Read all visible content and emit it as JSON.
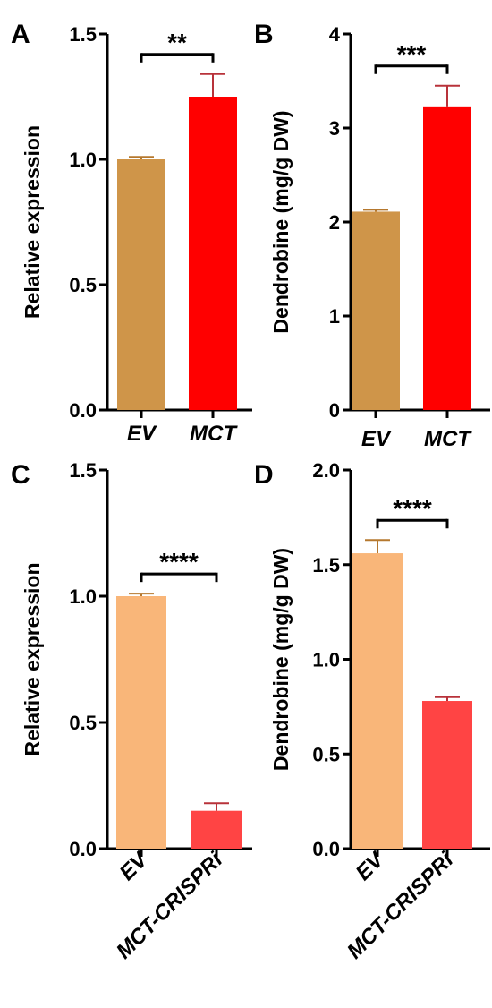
{
  "chart_data": [
    {
      "panel": "A",
      "type": "bar",
      "ylabel": "Relative expression",
      "ylim": [
        0,
        1.5
      ],
      "yticks": [
        "0.0",
        "0.5",
        "1.0",
        "1.5"
      ],
      "categories": [
        "EV",
        "MCT"
      ],
      "values": [
        1.0,
        1.25
      ],
      "errors": [
        0.01,
        0.09
      ],
      "colors": [
        "#cf9549",
        "#ff0000"
      ],
      "significance": "**",
      "grid": false
    },
    {
      "panel": "B",
      "type": "bar",
      "ylabel": "Dendrobine (mg/g DW)",
      "ylim": [
        0,
        4
      ],
      "yticks": [
        "0",
        "1",
        "2",
        "3",
        "4"
      ],
      "categories": [
        "EV",
        "MCT"
      ],
      "values": [
        2.11,
        3.23
      ],
      "errors": [
        0.02,
        0.22
      ],
      "colors": [
        "#cf9549",
        "#ff0000"
      ],
      "significance": "***",
      "grid": false
    },
    {
      "panel": "C",
      "type": "bar",
      "ylabel": "Relative expression",
      "ylim": [
        0,
        1.5
      ],
      "yticks": [
        "0.0",
        "0.5",
        "1.0",
        "1.5"
      ],
      "categories": [
        "EV",
        "MCT-CRISPRi"
      ],
      "values": [
        1.0,
        0.15
      ],
      "errors": [
        0.01,
        0.03
      ],
      "colors": [
        "#f9b679",
        "#ff4444"
      ],
      "significance": "****",
      "grid": false
    },
    {
      "panel": "D",
      "type": "bar",
      "ylabel": "Dendrobine (mg/g DW)",
      "ylim": [
        0,
        2.0
      ],
      "yticks": [
        "0.0",
        "0.5",
        "1.0",
        "1.5",
        "2.0"
      ],
      "categories": [
        "EV",
        "MCT-CRISPRi"
      ],
      "values": [
        1.56,
        0.78
      ],
      "errors": [
        0.07,
        0.02
      ],
      "colors": [
        "#f9b679",
        "#ff4444"
      ],
      "significance": "****",
      "grid": false
    }
  ]
}
